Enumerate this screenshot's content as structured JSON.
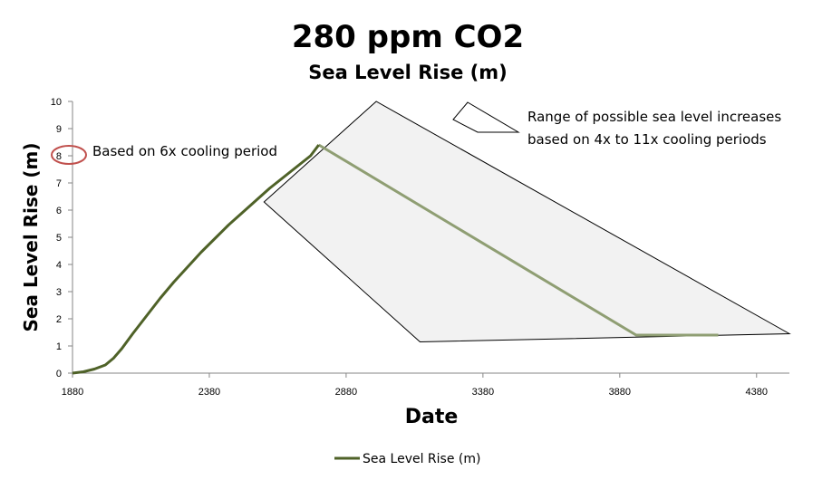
{
  "chart_data": {
    "type": "line",
    "title": "280 ppm CO2",
    "subtitle": "Sea Level Rise (m)",
    "xlabel": "Date",
    "ylabel": "Sea Level Rise (m)",
    "xlim": [
      1880,
      4500
    ],
    "ylim": [
      0,
      10
    ],
    "x_ticks": [
      1880,
      2380,
      2880,
      3380,
      3880,
      4380
    ],
    "y_ticks": [
      0,
      1,
      2,
      3,
      4,
      5,
      6,
      7,
      8,
      9,
      10
    ],
    "grid": false,
    "legend_position": "bottom",
    "series": [
      {
        "name": "Sea Level Rise (m)",
        "color": "#4f6228",
        "x": [
          1880,
          1920,
          1960,
          2000,
          2030,
          2060,
          2100,
          2150,
          2200,
          2250,
          2300,
          2350,
          2400,
          2450,
          2500,
          2550,
          2600,
          2650,
          2700,
          2750,
          2780
        ],
        "y": [
          0,
          0.05,
          0.15,
          0.3,
          0.55,
          0.9,
          1.45,
          2.1,
          2.75,
          3.35,
          3.9,
          4.45,
          4.95,
          5.45,
          5.9,
          6.35,
          6.8,
          7.2,
          7.6,
          8.0,
          8.4
        ]
      }
    ],
    "projection_line": {
      "color": "#8f9e73",
      "x": [
        2780,
        3940,
        4240
      ],
      "y": [
        8.4,
        1.4,
        1.4
      ]
    },
    "range_polygon": {
      "fill": "#f2f2f2",
      "stroke": "#000000",
      "x": [
        2580,
        2990,
        4500,
        3150
      ],
      "y": [
        6.3,
        10,
        1.45,
        1.15
      ]
    },
    "annotations": [
      {
        "text": "Based on 6x cooling period",
        "points_to_y": 8
      },
      {
        "text_lines": [
          "Range of possible sea level increases",
          "based on 4x to 11x cooling periods"
        ]
      }
    ]
  }
}
